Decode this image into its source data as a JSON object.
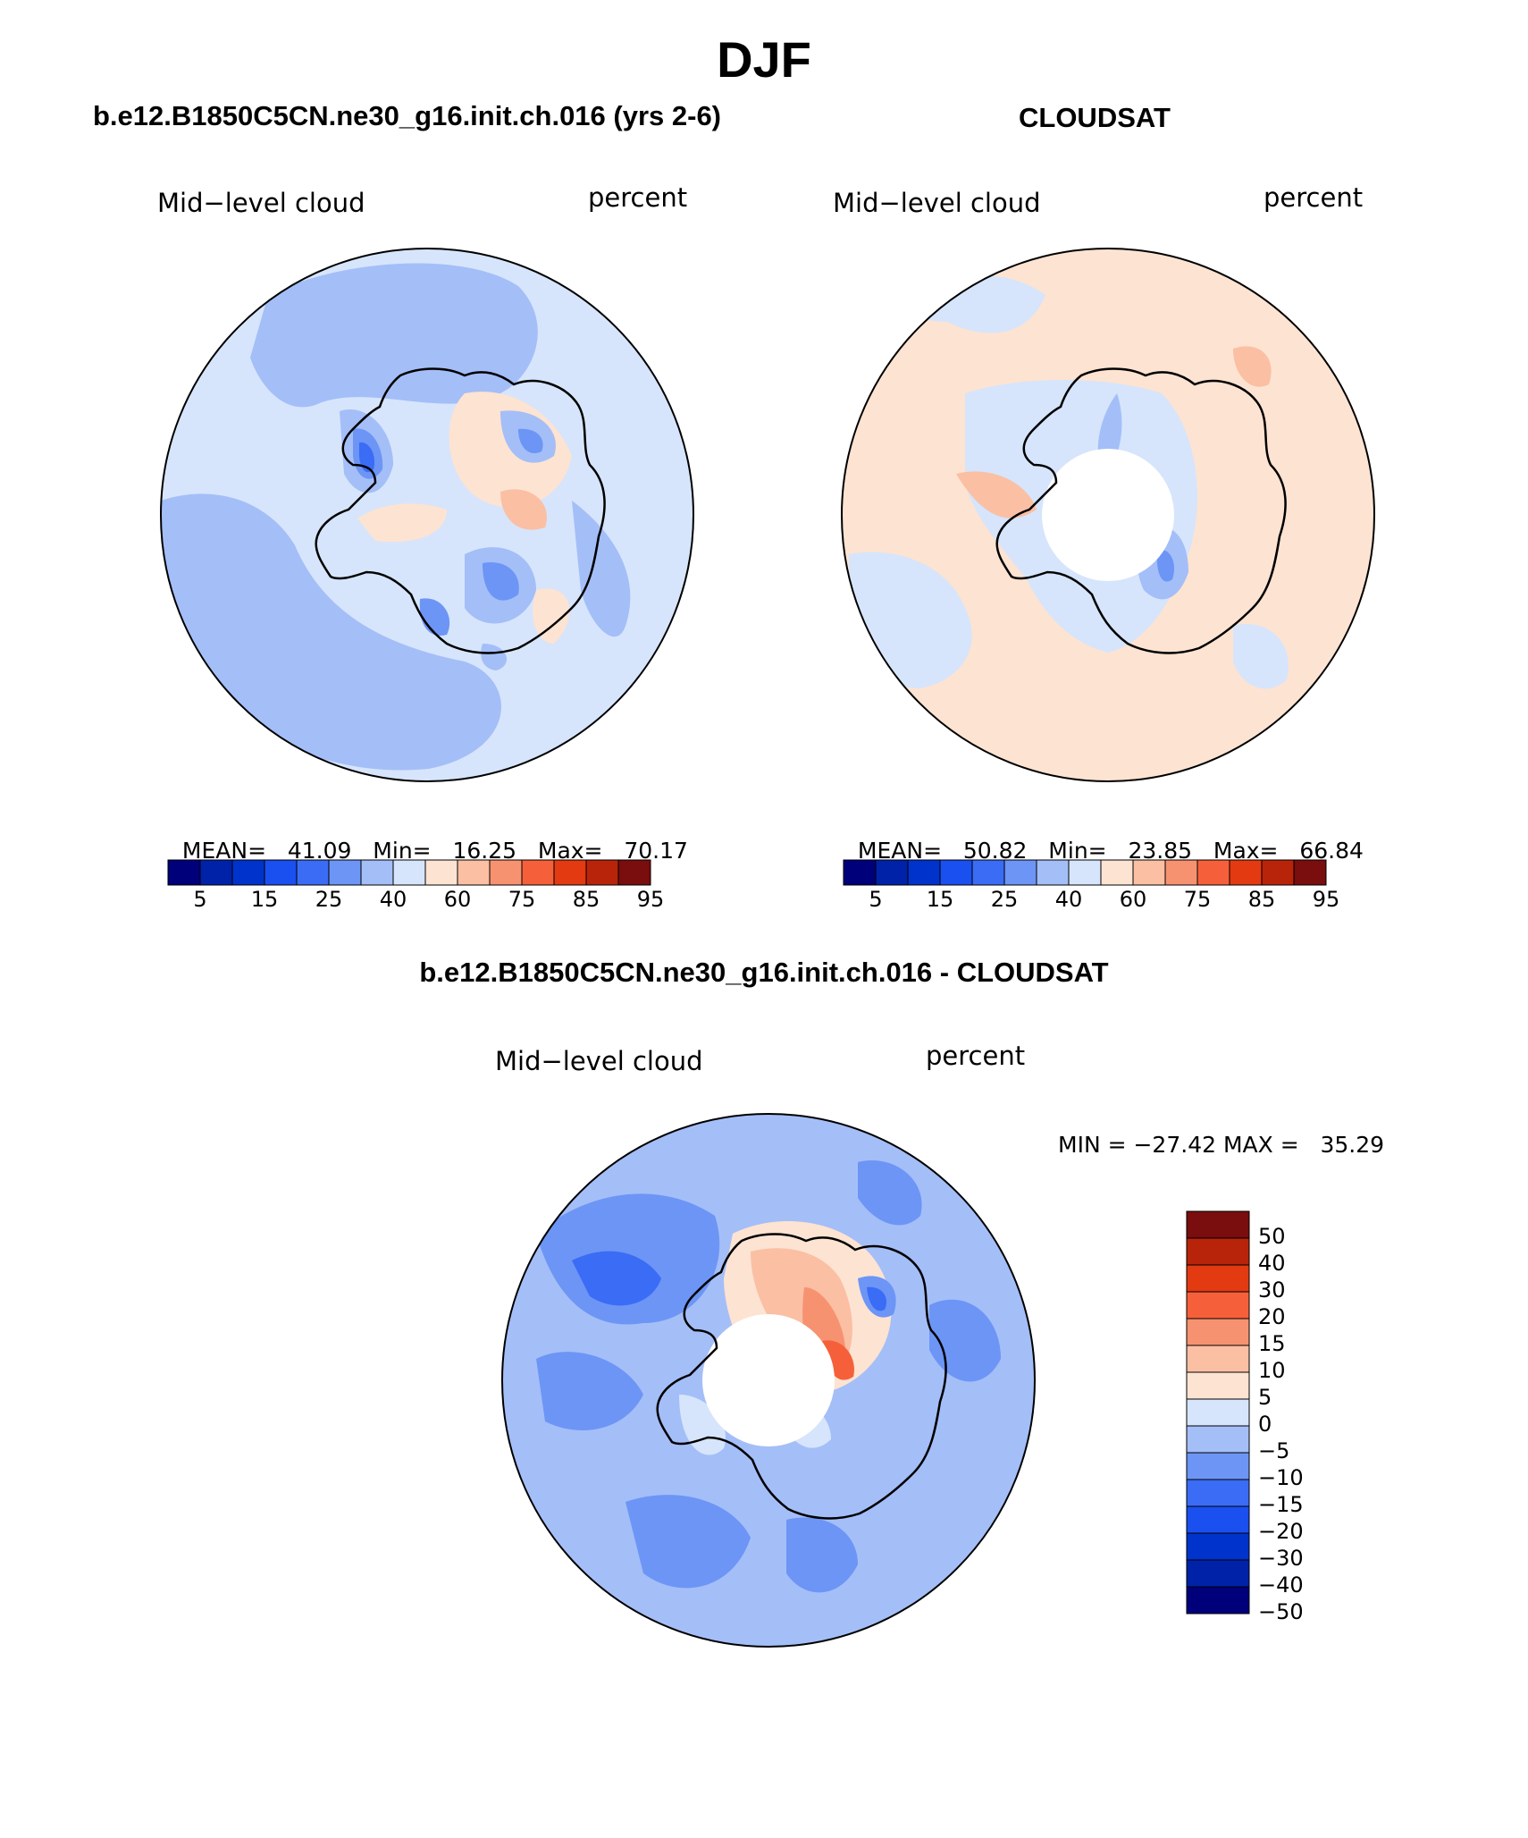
{
  "page": {
    "title": "DJF",
    "colors": {
      "ramp": [
        "#00007a",
        "#0022a8",
        "#0033cc",
        "#1a4ff0",
        "#3a6cf5",
        "#6c95f5",
        "#a4bef8",
        "#d6e5fb",
        "#fde3d2",
        "#fbbfa3",
        "#f79270",
        "#f5603a",
        "#e33a12",
        "#b8240a",
        "#7a0d0d"
      ],
      "land_outline": "#000000"
    }
  },
  "panels": [
    {
      "id": "model",
      "case_title": "b.e12.B1850C5CN.ne30_g16.init.ch.016 (yrs 2-6)",
      "left_label": "Mid−level cloud",
      "right_label": "percent",
      "stats": {
        "mean_label": "MEAN=",
        "mean": "41.09",
        "min_label": "Min=",
        "min": "16.25",
        "max_label": "Max=",
        "max": "70.17"
      },
      "colorbar_labels": [
        "5",
        "15",
        "25",
        "40",
        "60",
        "75",
        "85",
        "95"
      ],
      "has_polar_hole": false
    },
    {
      "id": "obs",
      "case_title": "CLOUDSAT",
      "left_label": "Mid−level cloud",
      "right_label": "percent",
      "stats": {
        "mean_label": "MEAN=",
        "mean": "50.82",
        "min_label": "Min=",
        "min": "23.85",
        "max_label": "Max=",
        "max": "66.84"
      },
      "colorbar_labels": [
        "5",
        "15",
        "25",
        "40",
        "60",
        "75",
        "85",
        "95"
      ],
      "has_polar_hole": true
    },
    {
      "id": "diff",
      "case_title": "b.e12.B1850C5CN.ne30_g16.init.ch.016 - CLOUDSAT",
      "left_label": "Mid−level cloud",
      "right_label": "percent",
      "stats_text": "MIN = −27.42 MAX =   35.29",
      "colorbar_labels": [
        "50",
        "40",
        "30",
        "20",
        "15",
        "10",
        "5",
        "0",
        "−5",
        "−10",
        "−15",
        "−20",
        "−30",
        "−40",
        "−50"
      ],
      "has_polar_hole": true
    }
  ]
}
